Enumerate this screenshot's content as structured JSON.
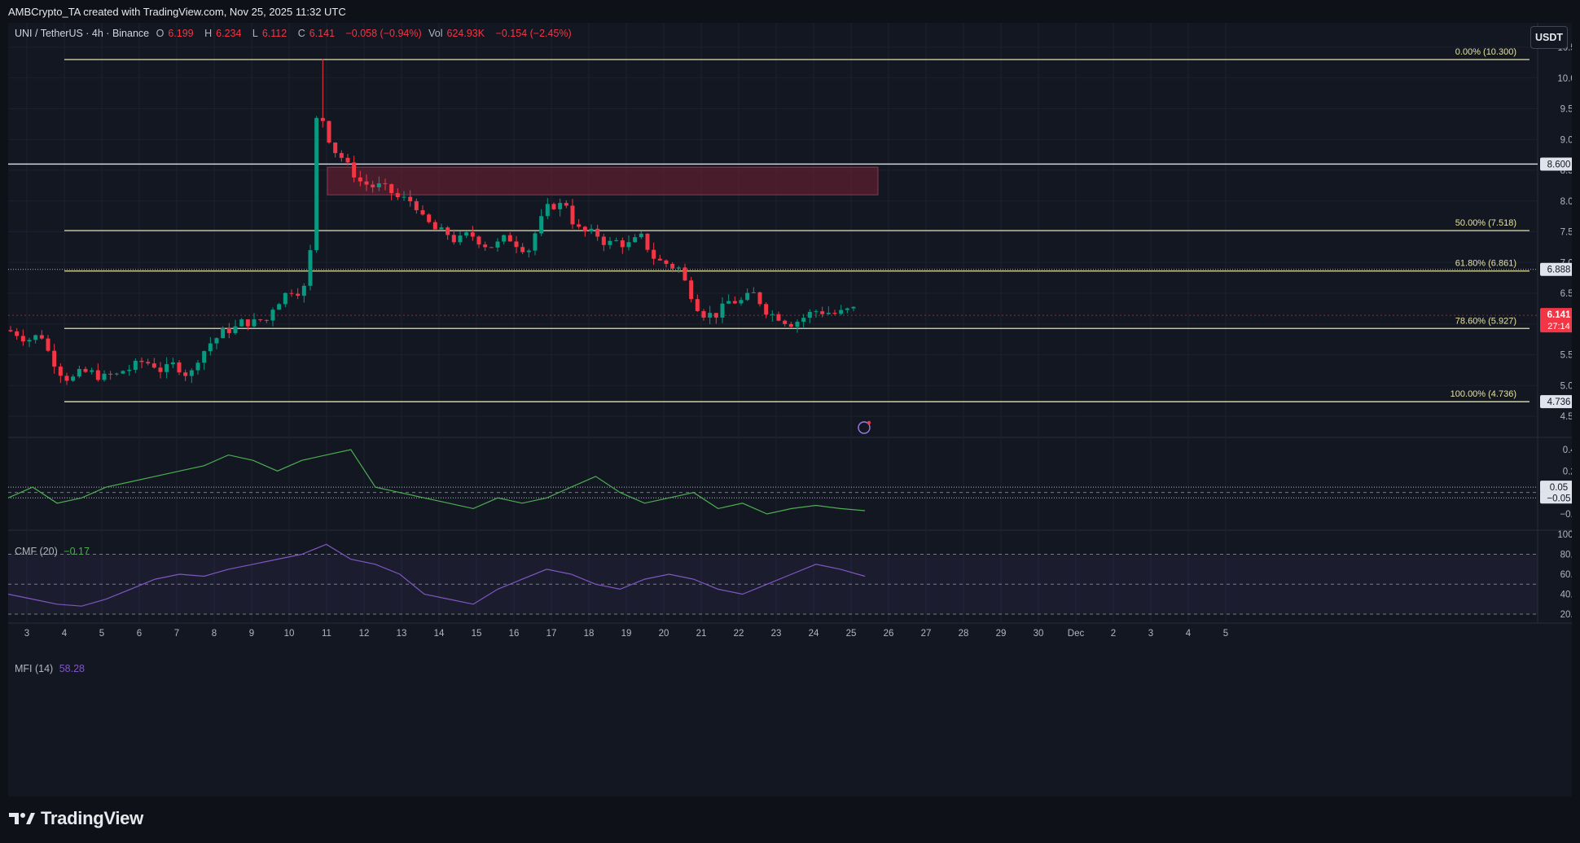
{
  "header": {
    "caption": "AMBCrypto_TA created with TradingView.com, Nov 25, 2025 11:32 UTC"
  },
  "legend": {
    "symbol": "UNI / TetherUS · 4h · Binance",
    "o_label": "O",
    "o_value": "6.199",
    "h_label": "H",
    "h_value": "6.234",
    "l_label": "L",
    "l_value": "6.112",
    "c_label": "C",
    "c_value": "6.141",
    "change": "−0.058 (−0.94%)",
    "vol_label": "Vol",
    "vol_value": "624.93K",
    "vol_change": "−0.154 (−2.45%)"
  },
  "currency_button": "USDT",
  "colors": {
    "up": "#089981",
    "down": "#f23645",
    "fib": "#e6e2a0",
    "cmf": "#4caf50",
    "mfi": "#7e57c2",
    "background": "#131722",
    "order_block": "#5c1f30"
  },
  "price_axis": {
    "ticks": [
      "10.500",
      "10.000",
      "9.500",
      "9.000",
      "8.500",
      "8.000",
      "7.500",
      "7.000",
      "6.500",
      "6.000",
      "5.500",
      "5.000",
      "4.500"
    ],
    "last_price_label": "6.141",
    "countdown": "27:14",
    "level_868_label": "8.600",
    "level_6888_label": "6.888",
    "level_4736_label": "4.736"
  },
  "fib_levels": [
    {
      "label": "0.00% (10.300)",
      "price": 10.3
    },
    {
      "label": "50.00% (7.518)",
      "price": 7.518
    },
    {
      "label": "61.80% (6.861)",
      "price": 6.861
    },
    {
      "label": "78.60% (5.927)",
      "price": 5.927
    },
    {
      "label": "100.00% (4.736)",
      "price": 4.736
    }
  ],
  "time_axis": {
    "ticks": [
      "3",
      "4",
      "5",
      "6",
      "7",
      "8",
      "9",
      "10",
      "11",
      "12",
      "13",
      "14",
      "15",
      "16",
      "17",
      "18",
      "19",
      "20",
      "21",
      "22",
      "23",
      "24",
      "25",
      "26",
      "27",
      "28",
      "29",
      "30",
      "Dec",
      "2",
      "3",
      "4",
      "5"
    ]
  },
  "cmf": {
    "legend_name": "CMF (20)",
    "legend_value": "−0.17",
    "ticks": [
      "0.40",
      "0.20",
      "0.05",
      "−0.05",
      "−0.20"
    ]
  },
  "mfi": {
    "legend_name": "MFI (14)",
    "legend_value": "58.28",
    "ticks": [
      "100.00",
      "80.00",
      "60.00",
      "40.00",
      "20.00"
    ]
  },
  "branding": "TradingView",
  "chart_data": [
    {
      "type": "candlestick",
      "title": "UNI / TetherUS · 4h · Binance",
      "ylim": [
        4.3,
        10.8
      ],
      "x_dates": [
        "Nov 3",
        "Nov 4",
        "Nov 5",
        "Nov 6",
        "Nov 7",
        "Nov 8",
        "Nov 9",
        "Nov 10",
        "Nov 11",
        "Nov 12",
        "Nov 13",
        "Nov 14",
        "Nov 15",
        "Nov 16",
        "Nov 17",
        "Nov 18",
        "Nov 19",
        "Nov 20",
        "Nov 21",
        "Nov 22",
        "Nov 23",
        "Nov 24",
        "Nov 25"
      ],
      "daily_approx_close": [
        5.85,
        5.15,
        5.1,
        5.35,
        5.25,
        5.95,
        6.05,
        6.75,
        8.6,
        8.2,
        7.9,
        7.3,
        7.35,
        7.35,
        8.0,
        7.3,
        7.3,
        6.9,
        6.2,
        6.4,
        6.15,
        6.25,
        6.14
      ],
      "horizontal_levels": [
        8.6,
        6.888,
        4.736
      ],
      "zone": {
        "type": "resistance order block",
        "from_price": 8.1,
        "to_price": 8.55,
        "from_date": "Nov 11",
        "to_date": "Nov 25"
      },
      "last": {
        "open": 6.199,
        "high": 6.234,
        "low": 6.112,
        "close": 6.141
      }
    },
    {
      "type": "line",
      "title": "CMF (20)",
      "ylim": [
        -0.32,
        0.5
      ],
      "reference_lines": [
        0.05,
        -0.05
      ],
      "values": [
        -0.05,
        0.05,
        -0.1,
        -0.05,
        0.05,
        0.1,
        0.15,
        0.2,
        0.25,
        0.35,
        0.3,
        0.2,
        0.3,
        0.35,
        0.4,
        0.05,
        0.0,
        -0.05,
        -0.1,
        -0.15,
        -0.05,
        -0.1,
        -0.05,
        0.05,
        0.15,
        0.0,
        -0.1,
        -0.05,
        0.0,
        -0.15,
        -0.1,
        -0.2,
        -0.15,
        -0.12,
        -0.15,
        -0.17
      ]
    },
    {
      "type": "line",
      "title": "MFI (14)",
      "ylim": [
        15,
        100
      ],
      "reference_lines": [
        80,
        50,
        20
      ],
      "values": [
        40,
        35,
        30,
        28,
        35,
        45,
        55,
        60,
        58,
        65,
        70,
        75,
        80,
        90,
        75,
        70,
        60,
        40,
        35,
        30,
        45,
        55,
        65,
        60,
        50,
        45,
        55,
        60,
        55,
        45,
        40,
        50,
        60,
        70,
        65,
        58
      ]
    }
  ]
}
